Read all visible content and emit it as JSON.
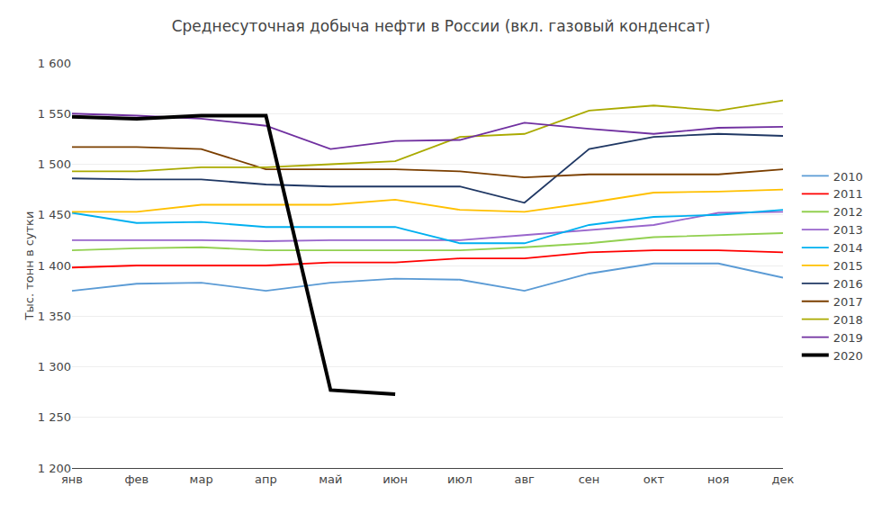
{
  "chart_data": {
    "type": "line",
    "title": "Среднесуточная добыча нефти в России (вкл. газовый конденсат)",
    "ylabel": "Тыс. тонн в сутки",
    "categories": [
      "янв",
      "фев",
      "мар",
      "апр",
      "май",
      "июн",
      "июл",
      "авг",
      "сен",
      "окт",
      "ноя",
      "дек"
    ],
    "ylim": [
      1200,
      1600
    ],
    "yticks": [
      {
        "value": 1200,
        "label": "1 200"
      },
      {
        "value": 1250,
        "label": "1 250"
      },
      {
        "value": 1300,
        "label": "1 300"
      },
      {
        "value": 1350,
        "label": "1 350"
      },
      {
        "value": 1400,
        "label": "1 400"
      },
      {
        "value": 1450,
        "label": "1 450"
      },
      {
        "value": 1500,
        "label": "1 500"
      },
      {
        "value": 1550,
        "label": "1 550"
      },
      {
        "value": 1600,
        "label": "1 600"
      }
    ],
    "grid": true,
    "legend": "right",
    "series": [
      {
        "name": "2010",
        "color": "#5B9BD5",
        "values": [
          1375,
          1382,
          1383,
          1375,
          1383,
          1387,
          1386,
          1375,
          1392,
          1402,
          1402,
          1388
        ]
      },
      {
        "name": "2011",
        "color": "#FF0000",
        "values": [
          1398,
          1400,
          1400,
          1400,
          1403,
          1403,
          1407,
          1407,
          1413,
          1415,
          1415,
          1413
        ]
      },
      {
        "name": "2012",
        "color": "#92D050",
        "values": [
          1415,
          1417,
          1418,
          1415,
          1415,
          1415,
          1415,
          1418,
          1422,
          1428,
          1430,
          1432
        ]
      },
      {
        "name": "2013",
        "color": "#9966CC",
        "values": [
          1425,
          1425,
          1425,
          1424,
          1425,
          1425,
          1425,
          1430,
          1435,
          1440,
          1452,
          1453
        ]
      },
      {
        "name": "2014",
        "color": "#00B0F0",
        "values": [
          1452,
          1442,
          1443,
          1438,
          1438,
          1438,
          1422,
          1422,
          1440,
          1448,
          1450,
          1455
        ]
      },
      {
        "name": "2015",
        "color": "#FFC000",
        "values": [
          1453,
          1453,
          1460,
          1460,
          1460,
          1465,
          1455,
          1453,
          1462,
          1472,
          1473,
          1475
        ]
      },
      {
        "name": "2016",
        "color": "#203864",
        "values": [
          1486,
          1485,
          1485,
          1480,
          1478,
          1478,
          1478,
          1462,
          1515,
          1527,
          1530,
          1528
        ]
      },
      {
        "name": "2017",
        "color": "#7B3F00",
        "values": [
          1517,
          1517,
          1515,
          1495,
          1495,
          1495,
          1493,
          1487,
          1490,
          1490,
          1490,
          1495
        ]
      },
      {
        "name": "2018",
        "color": "#AAAA00",
        "values": [
          1493,
          1493,
          1497,
          1497,
          1500,
          1503,
          1527,
          1530,
          1553,
          1558,
          1553,
          1563
        ]
      },
      {
        "name": "2019",
        "color": "#7030A0",
        "values": [
          1550,
          1548,
          1545,
          1538,
          1515,
          1523,
          1524,
          1541,
          1535,
          1530,
          1536,
          1537
        ]
      },
      {
        "name": "2020",
        "color": "#000000",
        "values": [
          1547,
          1545,
          1548,
          1548,
          1277,
          1273,
          null,
          null,
          null,
          null,
          null,
          null
        ]
      }
    ]
  }
}
